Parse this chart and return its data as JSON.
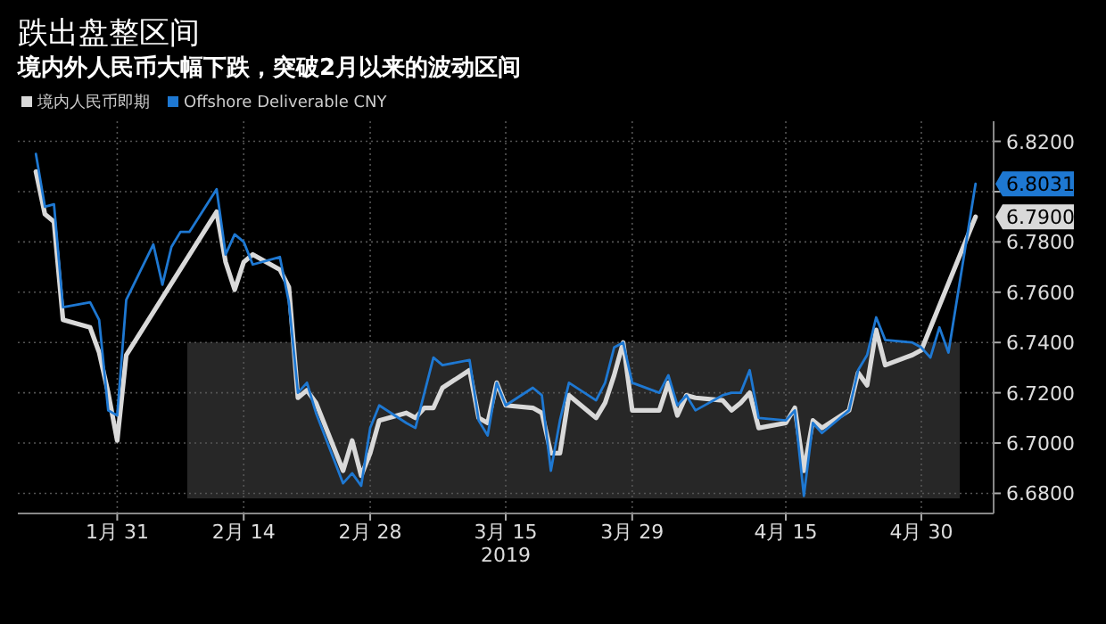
{
  "chart_data": {
    "type": "line",
    "title": "跌出盘整区间",
    "subtitle": "境内外人民币大幅下跌，突破2月以来的波动区间",
    "xlabel": "2019",
    "series": [
      {
        "name": "境内人民币即期",
        "color": "#d9d9d9",
        "x": [
          "2019-01-22",
          "2019-01-23",
          "2019-01-24",
          "2019-01-25",
          "2019-01-28",
          "2019-01-29",
          "2019-01-30",
          "2019-01-31",
          "2019-02-01",
          "2019-02-11",
          "2019-02-12",
          "2019-02-13",
          "2019-02-14",
          "2019-02-15",
          "2019-02-18",
          "2019-02-19",
          "2019-02-20",
          "2019-02-21",
          "2019-02-22",
          "2019-02-25",
          "2019-02-26",
          "2019-02-27",
          "2019-02-28",
          "2019-03-01",
          "2019-03-04",
          "2019-03-05",
          "2019-03-06",
          "2019-03-07",
          "2019-03-08",
          "2019-03-11",
          "2019-03-12",
          "2019-03-13",
          "2019-03-14",
          "2019-03-15",
          "2019-03-18",
          "2019-03-19",
          "2019-03-20",
          "2019-03-21",
          "2019-03-22",
          "2019-03-25",
          "2019-03-26",
          "2019-03-27",
          "2019-03-28",
          "2019-03-29",
          "2019-04-01",
          "2019-04-02",
          "2019-04-03",
          "2019-04-04",
          "2019-04-05",
          "2019-04-08",
          "2019-04-09",
          "2019-04-10",
          "2019-04-11",
          "2019-04-12",
          "2019-04-15",
          "2019-04-16",
          "2019-04-17",
          "2019-04-18",
          "2019-04-19",
          "2019-04-22",
          "2019-04-23",
          "2019-04-24",
          "2019-04-25",
          "2019-04-26",
          "2019-04-29",
          "2019-04-30",
          "2019-05-06"
        ],
        "values": [
          6.808,
          6.791,
          6.788,
          6.749,
          6.746,
          6.736,
          6.72,
          6.701,
          6.735,
          6.792,
          6.772,
          6.761,
          6.772,
          6.775,
          6.769,
          6.762,
          6.718,
          6.721,
          6.716,
          6.689,
          6.701,
          6.687,
          6.696,
          6.709,
          6.712,
          6.71,
          6.714,
          6.714,
          6.722,
          6.729,
          6.71,
          6.708,
          6.724,
          6.715,
          6.714,
          6.712,
          6.696,
          6.696,
          6.719,
          6.71,
          6.716,
          6.727,
          6.74,
          6.713,
          6.713,
          6.724,
          6.711,
          6.719,
          6.718,
          6.717,
          6.713,
          6.716,
          6.72,
          6.706,
          6.708,
          6.714,
          6.689,
          6.709,
          6.706,
          6.713,
          6.728,
          6.723,
          6.745,
          6.731,
          6.735,
          6.737,
          6.79
        ],
        "value_labels": [
          null,
          null,
          null,
          null,
          null,
          null,
          null,
          null,
          null,
          null,
          null,
          null,
          null,
          null,
          null,
          null,
          null,
          null,
          null,
          null,
          null,
          null,
          null,
          null,
          null,
          null,
          null,
          null,
          null,
          null,
          null,
          null,
          null,
          null,
          null,
          null,
          null,
          null,
          null,
          null,
          null,
          null,
          null,
          null,
          null,
          null,
          null,
          null,
          null,
          null,
          null,
          null,
          null,
          null,
          null,
          null,
          null,
          null,
          null,
          null,
          null,
          null,
          null,
          null,
          null,
          null,
          "6.7900"
        ]
      },
      {
        "name": "Offshore Deliverable CNY",
        "color": "#1e78d2",
        "x": [
          "2019-01-22",
          "2019-01-23",
          "2019-01-24",
          "2019-01-25",
          "2019-01-28",
          "2019-01-29",
          "2019-01-30",
          "2019-01-31",
          "2019-02-01",
          "2019-02-04",
          "2019-02-05",
          "2019-02-06",
          "2019-02-07",
          "2019-02-08",
          "2019-02-11",
          "2019-02-12",
          "2019-02-13",
          "2019-02-14",
          "2019-02-15",
          "2019-02-18",
          "2019-02-19",
          "2019-02-20",
          "2019-02-21",
          "2019-02-22",
          "2019-02-25",
          "2019-02-26",
          "2019-02-27",
          "2019-02-28",
          "2019-03-01",
          "2019-03-04",
          "2019-03-05",
          "2019-03-06",
          "2019-03-07",
          "2019-03-08",
          "2019-03-11",
          "2019-03-12",
          "2019-03-13",
          "2019-03-14",
          "2019-03-15",
          "2019-03-18",
          "2019-03-19",
          "2019-03-20",
          "2019-03-21",
          "2019-03-22",
          "2019-03-25",
          "2019-03-26",
          "2019-03-27",
          "2019-03-28",
          "2019-03-29",
          "2019-04-01",
          "2019-04-02",
          "2019-04-03",
          "2019-04-04",
          "2019-04-05",
          "2019-04-08",
          "2019-04-09",
          "2019-04-10",
          "2019-04-11",
          "2019-04-12",
          "2019-04-15",
          "2019-04-16",
          "2019-04-17",
          "2019-04-18",
          "2019-04-19",
          "2019-04-22",
          "2019-04-23",
          "2019-04-24",
          "2019-04-25",
          "2019-04-26",
          "2019-04-29",
          "2019-04-30",
          "2019-05-01",
          "2019-05-02",
          "2019-05-03",
          "2019-05-06"
        ],
        "values": [
          6.815,
          6.794,
          6.795,
          6.754,
          6.756,
          6.749,
          6.713,
          6.711,
          6.757,
          6.779,
          6.763,
          6.778,
          6.784,
          6.784,
          6.801,
          6.775,
          6.783,
          6.78,
          6.771,
          6.774,
          6.756,
          6.72,
          6.724,
          6.712,
          6.684,
          6.688,
          6.683,
          6.706,
          6.715,
          6.708,
          6.706,
          6.72,
          6.734,
          6.731,
          6.733,
          6.709,
          6.703,
          6.724,
          6.715,
          6.722,
          6.719,
          6.689,
          6.709,
          6.724,
          6.717,
          6.724,
          6.738,
          6.74,
          6.724,
          6.72,
          6.727,
          6.715,
          6.719,
          6.713,
          6.719,
          6.72,
          6.72,
          6.729,
          6.71,
          6.709,
          6.713,
          6.679,
          6.708,
          6.704,
          6.713,
          6.729,
          6.735,
          6.75,
          6.741,
          6.74,
          6.738,
          6.734,
          6.746,
          6.736,
          6.8031
        ],
        "value_labels": [
          null,
          null,
          null,
          null,
          null,
          null,
          null,
          null,
          null,
          null,
          null,
          null,
          null,
          null,
          null,
          null,
          null,
          null,
          null,
          null,
          null,
          null,
          null,
          null,
          null,
          null,
          null,
          null,
          null,
          null,
          null,
          null,
          null,
          null,
          null,
          null,
          null,
          null,
          null,
          null,
          null,
          null,
          null,
          null,
          null,
          null,
          null,
          null,
          null,
          null,
          null,
          null,
          null,
          null,
          null,
          null,
          null,
          null,
          null,
          null,
          null,
          null,
          null,
          null,
          null,
          null,
          null,
          null,
          null,
          null,
          null,
          null,
          null,
          null,
          "6.8031"
        ]
      }
    ],
    "xlim": [
      "2019-01-20",
      "2019-05-08"
    ],
    "xticks": [
      {
        "value": "2019-01-31",
        "label": "1月 31"
      },
      {
        "value": "2019-02-14",
        "label": "2月 14"
      },
      {
        "value": "2019-02-28",
        "label": "2月 28"
      },
      {
        "value": "2019-03-15",
        "label": "3月 15"
      },
      {
        "value": "2019-03-29",
        "label": "3月 29"
      },
      {
        "value": "2019-04-15",
        "label": "4月 15"
      },
      {
        "value": "2019-04-30",
        "label": "4月 30"
      }
    ],
    "ylim": [
      6.672,
      6.828
    ],
    "yticks": [
      {
        "value": 6.68,
        "label": "6.6800"
      },
      {
        "value": 6.7,
        "label": "6.7000"
      },
      {
        "value": 6.72,
        "label": "6.7200"
      },
      {
        "value": 6.74,
        "label": "6.7400"
      },
      {
        "value": 6.76,
        "label": "6.7600"
      },
      {
        "value": 6.78,
        "label": "6.7800"
      },
      {
        "value": 6.8,
        "label": null
      },
      {
        "value": 6.82,
        "label": "6.8200"
      }
    ],
    "bands": [
      {
        "axis": "y",
        "from": 6.678,
        "to": 6.74,
        "color": "#2b2b2b"
      }
    ],
    "grid": true,
    "legend": "top left",
    "marker": "none",
    "line_style": "solid"
  }
}
